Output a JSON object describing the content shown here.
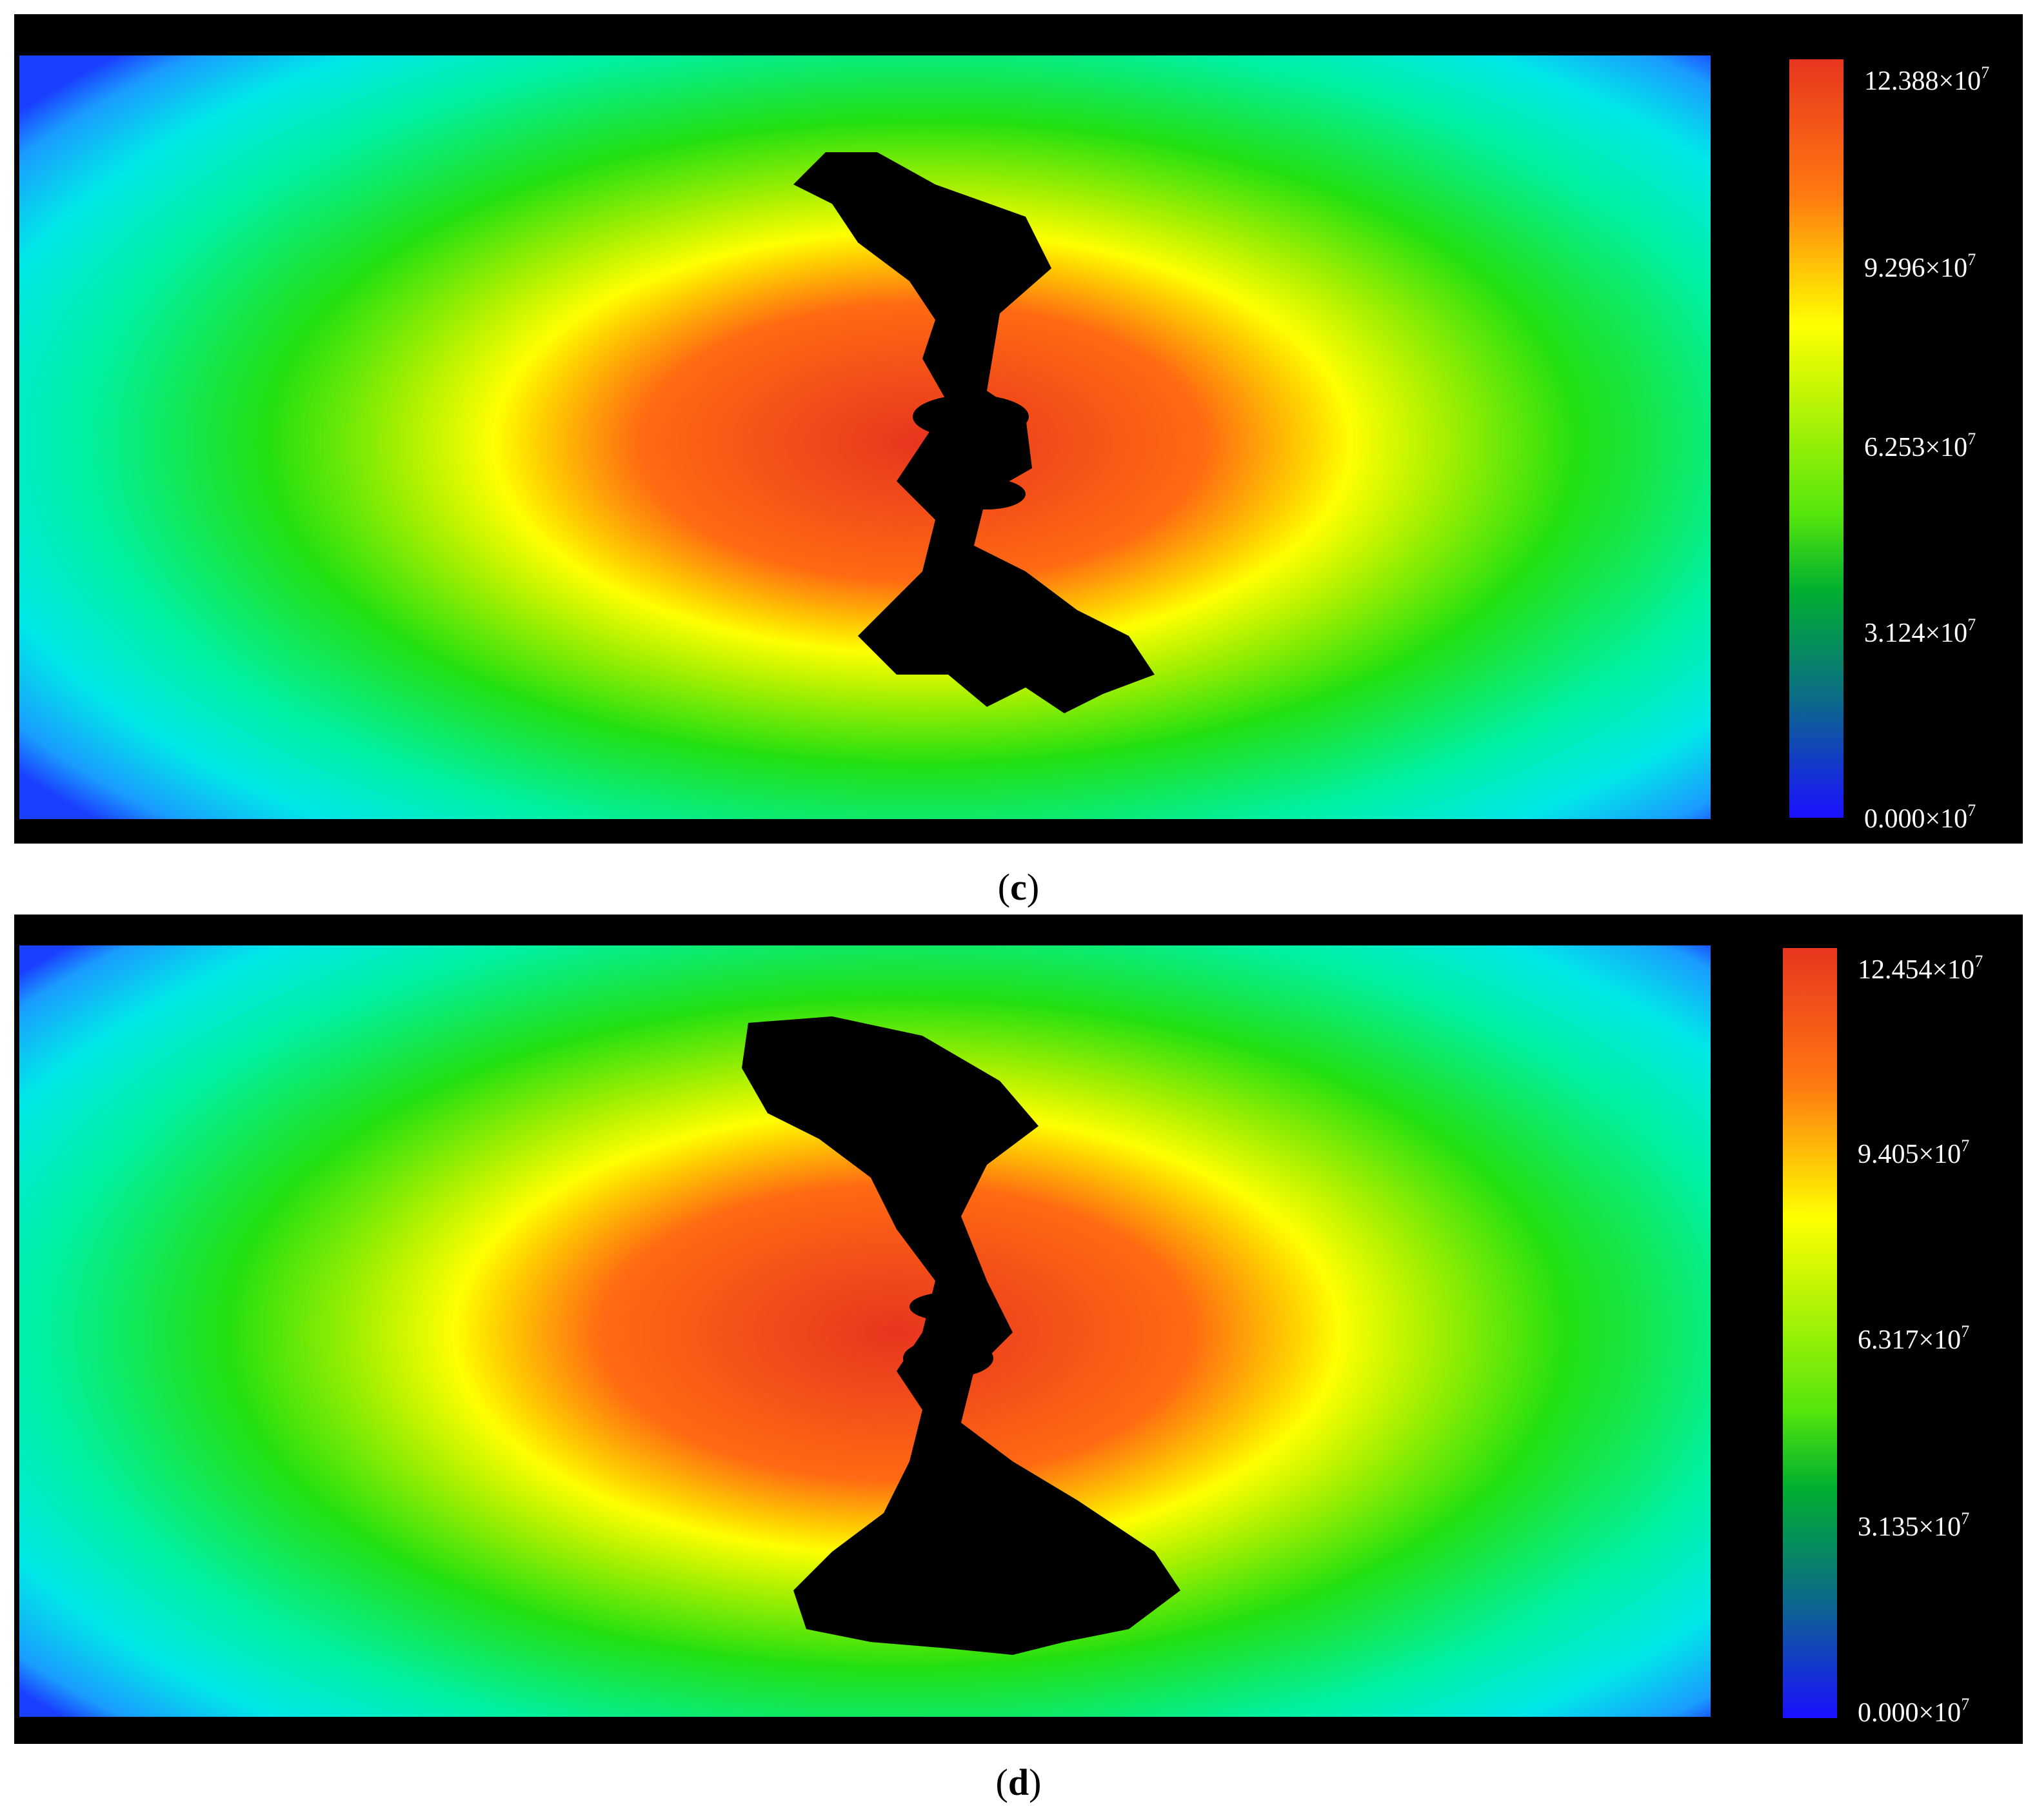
{
  "panels": [
    {
      "label": "c",
      "colorbar": {
        "ticks": [
          "12.388×10",
          "9.296×10",
          "6.253×10",
          "3.124×10",
          "0.000×10"
        ],
        "exponent": "7",
        "min": 0.0,
        "max": 12.388
      }
    },
    {
      "label": "d",
      "colorbar": {
        "ticks": [
          "12.454×10",
          "9.405×10",
          "6.317×10",
          "3.135×10",
          "0.000×10"
        ],
        "exponent": "7",
        "min": 0.0,
        "max": 12.454
      }
    }
  ],
  "colormap": [
    "#1a10ff",
    "#0b6d85",
    "#00b030",
    "#55e60c",
    "#ffff00",
    "#ff7a10",
    "#e8351f"
  ],
  "damage_color": "#000000"
}
